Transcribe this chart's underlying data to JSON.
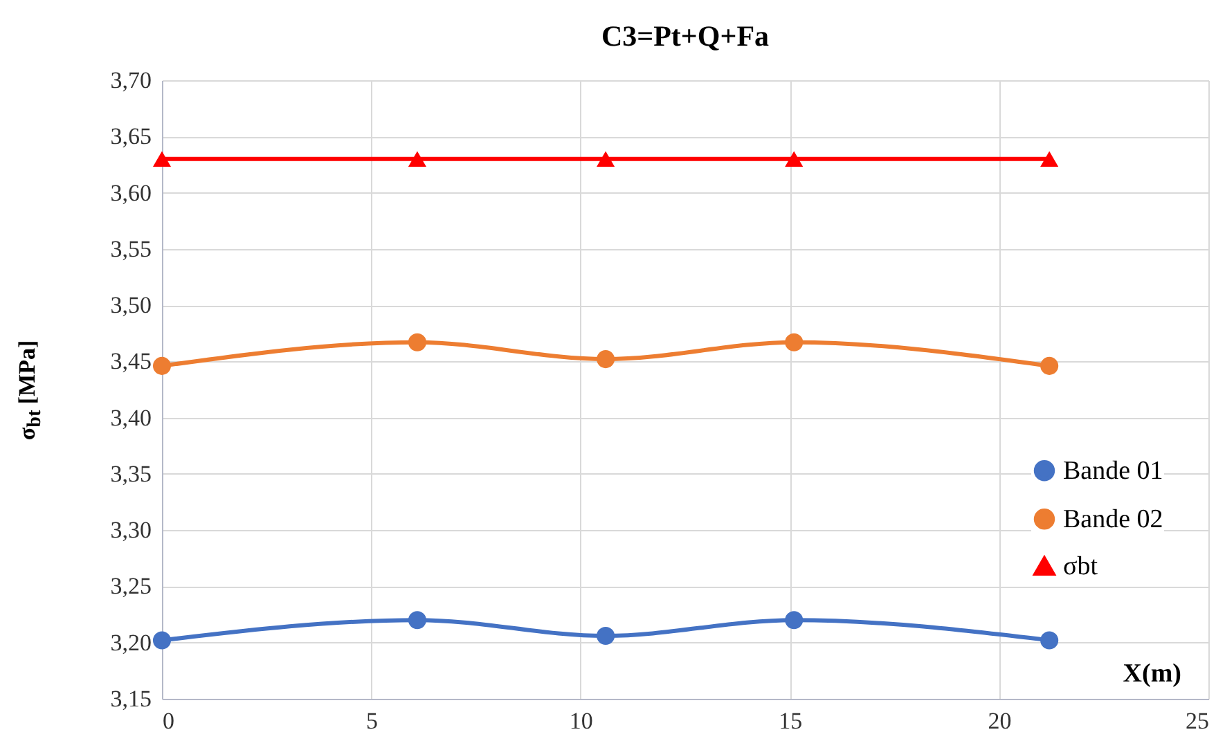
{
  "chart_data": {
    "type": "line",
    "title": "C3=Pt+Q+Fa",
    "xlabel": "X(m)",
    "ylabel": "σ$_{bt}$ [MPa]",
    "x": [
      0,
      6.1,
      10.6,
      15.1,
      21.2
    ],
    "series": [
      {
        "name": "Bande 01",
        "color": "#4472c4",
        "marker": "circle",
        "values": [
          3.202,
          3.22,
          3.206,
          3.22,
          3.202
        ]
      },
      {
        "name": "Bande 02",
        "color": "#ed7d31",
        "marker": "circle",
        "values": [
          3.446,
          3.467,
          3.452,
          3.467,
          3.446
        ]
      },
      {
        "name": "σbt",
        "color": "#ff0000",
        "marker": "triangle",
        "values": [
          3.63,
          3.63,
          3.63,
          3.63,
          3.63
        ]
      }
    ],
    "xlim": [
      0,
      25
    ],
    "xticks": [
      0,
      5,
      10,
      15,
      20,
      25
    ],
    "ylim": [
      3.15,
      3.7
    ],
    "yticks": [
      {
        "value": 3.15,
        "label": "3,15"
      },
      {
        "value": 3.2,
        "label": "3,20"
      },
      {
        "value": 3.25,
        "label": "3,25"
      },
      {
        "value": 3.3,
        "label": "3,30"
      },
      {
        "value": 3.35,
        "label": "3,35"
      },
      {
        "value": 3.4,
        "label": "3,40"
      },
      {
        "value": 3.45,
        "label": "3,45"
      },
      {
        "value": 3.5,
        "label": "3,50"
      },
      {
        "value": 3.55,
        "label": "3,55"
      },
      {
        "value": 3.6,
        "label": "3,60"
      },
      {
        "value": 3.65,
        "label": "3,65"
      },
      {
        "value": 3.7,
        "label": "3,70"
      }
    ],
    "grid": true,
    "legend": "right",
    "line_style": "solid"
  }
}
